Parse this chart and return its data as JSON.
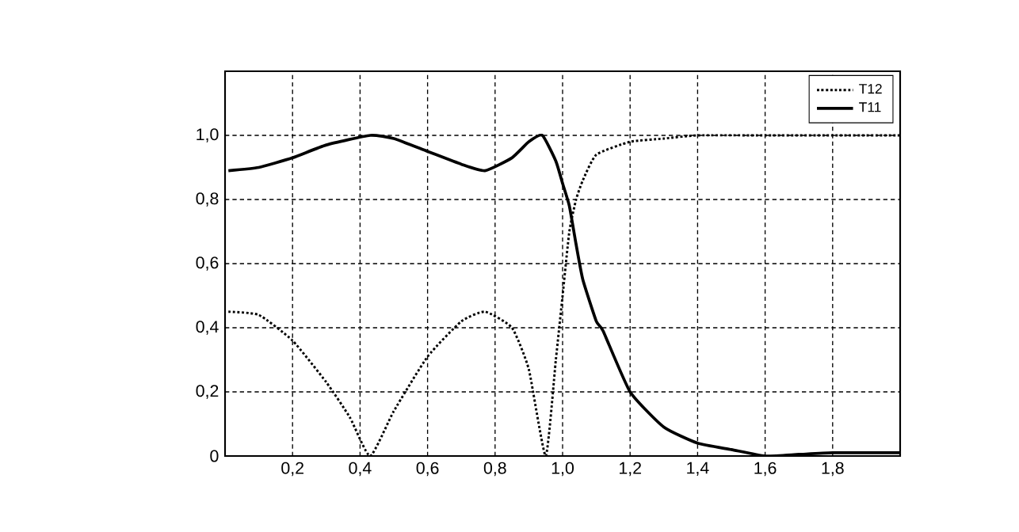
{
  "chart_data": {
    "type": "line",
    "xlim": [
      0,
      2
    ],
    "ylim": [
      0,
      1.2
    ],
    "xticks": [
      {
        "value": 0.2,
        "label": "0,2"
      },
      {
        "value": 0.4,
        "label": "0,4"
      },
      {
        "value": 0.6,
        "label": "0,6"
      },
      {
        "value": 0.8,
        "label": "0,8"
      },
      {
        "value": 1.0,
        "label": "1,0"
      },
      {
        "value": 1.2,
        "label": "1,2"
      },
      {
        "value": 1.4,
        "label": "1,4"
      },
      {
        "value": 1.6,
        "label": "1,6"
      },
      {
        "value": 1.8,
        "label": "1,8"
      }
    ],
    "yticks": [
      0,
      {
        "value": 0.2,
        "label": "0,2"
      },
      {
        "value": 0.4,
        "label": "0,4"
      },
      {
        "value": 0.6,
        "label": "0,6"
      },
      {
        "value": 0.8,
        "label": "0,8"
      },
      {
        "value": 1.0,
        "label": "1,0"
      }
    ],
    "grid": true,
    "legend": "top right",
    "marker": "none",
    "series": [
      {
        "name": "T12",
        "color": "#000000",
        "line_style": "dotted",
        "x": [
          0.01,
          0.1,
          0.2,
          0.3,
          0.37,
          0.43,
          0.5,
          0.6,
          0.7,
          0.77,
          0.85,
          0.9,
          0.95,
          0.98,
          1.0,
          1.02,
          1.04,
          1.06,
          1.1,
          1.2,
          1.3,
          1.4,
          1.6,
          1.8,
          2.0
        ],
        "values": [
          0.45,
          0.44,
          0.36,
          0.23,
          0.12,
          0.0,
          0.14,
          0.31,
          0.42,
          0.45,
          0.4,
          0.27,
          0.0,
          0.3,
          0.5,
          0.7,
          0.8,
          0.86,
          0.94,
          0.98,
          0.99,
          1.0,
          1.0,
          1.0,
          1.0
        ]
      },
      {
        "name": "T11",
        "color": "#000000",
        "line_style": "solid",
        "x": [
          0.01,
          0.1,
          0.2,
          0.3,
          0.43,
          0.5,
          0.6,
          0.7,
          0.77,
          0.85,
          0.9,
          0.94,
          0.98,
          1.0,
          1.02,
          1.04,
          1.06,
          1.1,
          1.12,
          1.2,
          1.3,
          1.4,
          1.5,
          1.6,
          1.7,
          1.8,
          2.0
        ],
        "values": [
          0.89,
          0.9,
          0.93,
          0.97,
          1.0,
          0.99,
          0.95,
          0.91,
          0.89,
          0.93,
          0.98,
          1.0,
          0.92,
          0.85,
          0.78,
          0.66,
          0.55,
          0.42,
          0.39,
          0.2,
          0.09,
          0.04,
          0.02,
          0.0,
          0.005,
          0.01,
          0.01
        ]
      }
    ]
  }
}
